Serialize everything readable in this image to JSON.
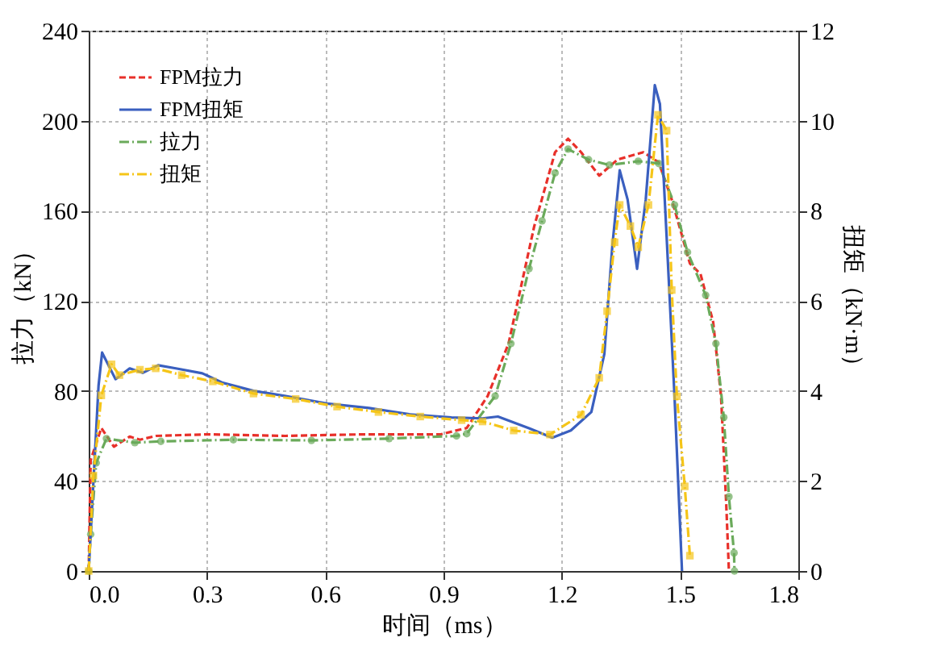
{
  "chart_data": {
    "type": "line",
    "xlabel": "时间（ms）",
    "ylabel": "拉力（kN）",
    "y2label": "扭矩（kN·m）",
    "xlim": [
      0,
      1.8
    ],
    "xticks": [
      {
        "value": 0,
        "label": "0.0"
      },
      {
        "value": 0.3,
        "label": "0.3"
      },
      {
        "value": 0.6,
        "label": "0.6"
      },
      {
        "value": 0.9,
        "label": "0.9"
      },
      {
        "value": 1.2,
        "label": "1.2"
      },
      {
        "value": 1.5,
        "label": "1.5"
      },
      {
        "value": 1.8,
        "label": "1.8"
      }
    ],
    "ylim": [
      0,
      240
    ],
    "yticks": [
      0,
      40,
      80,
      120,
      160,
      200,
      240
    ],
    "y2lim": [
      0,
      12
    ],
    "y2ticks": [
      0,
      2,
      4,
      6,
      8,
      10,
      12
    ],
    "grid": true,
    "legend": "top left",
    "series": [
      {
        "name": "FPM拉力",
        "color": "#e8302a",
        "line_style": "dashed",
        "marker": "none",
        "x": [
          0,
          0.005,
          0.032,
          0.064,
          0.104,
          0.13,
          0.17,
          0.3,
          0.499,
          0.696,
          0.893,
          0.946,
          0.959,
          1.012,
          1.065,
          1.13,
          1.183,
          1.216,
          1.249,
          1.295,
          1.341,
          1.407,
          1.446,
          1.479,
          1.525,
          1.552,
          1.584,
          1.604,
          1.617,
          1.624
        ],
        "values": [
          0,
          49.3,
          63.5,
          55.2,
          59.7,
          58.3,
          60,
          60.7,
          60,
          60.7,
          60.7,
          63,
          63.5,
          77.7,
          101,
          153,
          186,
          192,
          186,
          175.6,
          182.7,
          186,
          181.5,
          165,
          136.6,
          131.9,
          110.6,
          77.7,
          30.4,
          0
        ]
      },
      {
        "name": "FPM扭矩",
        "color": "#3a5fbf",
        "line_style": "solid",
        "marker": "none",
        "axis": "y2",
        "x": [
          0,
          0.025,
          0.034,
          0.068,
          0.104,
          0.137,
          0.176,
          0.221,
          0.288,
          0.34,
          0.418,
          0.497,
          0.604,
          0.711,
          0.813,
          0.92,
          0.999,
          1.038,
          1.117,
          1.176,
          1.223,
          1.275,
          1.308,
          1.328,
          1.347,
          1.367,
          1.391,
          1.413,
          1.436,
          1.449,
          1.466,
          1.486,
          1.505
        ],
        "values": [
          0,
          4.12,
          4.85,
          4.26,
          4.5,
          4.4,
          4.57,
          4.5,
          4.39,
          4.18,
          4.0,
          3.89,
          3.72,
          3.62,
          3.48,
          3.41,
          3.39,
          3.43,
          3.17,
          2.96,
          3.12,
          3.53,
          4.82,
          7.19,
          8.9,
          8.25,
          6.71,
          8.25,
          10.79,
          10.37,
          7.42,
          3.88,
          0
        ]
      },
      {
        "name": "拉力",
        "color": "#6aaa5a",
        "line_style": "dashdot",
        "marker": "circle",
        "x": [
          0,
          0.005,
          0.019,
          0.045,
          0.117,
          0.183,
          0.367,
          0.565,
          0.762,
          0.933,
          0.959,
          1.031,
          1.071,
          1.117,
          1.15,
          1.183,
          1.216,
          1.268,
          1.321,
          1.394,
          1.446,
          1.486,
          1.519,
          1.565,
          1.591,
          1.611,
          1.624,
          1.637,
          1.638
        ],
        "values": [
          0,
          16.3,
          48,
          58.8,
          57,
          57.6,
          58.3,
          58,
          58.8,
          60,
          61,
          77.7,
          101,
          134.3,
          155.5,
          176.8,
          187.4,
          182.7,
          180.3,
          182,
          181,
          162.6,
          141.6,
          122.5,
          101,
          68.2,
          33,
          8,
          0
        ]
      },
      {
        "name": "扭矩",
        "color": "#f5c518",
        "line_style": "dashdot",
        "marker": "square",
        "axis": "y2",
        "x": [
          0,
          0.012,
          0.032,
          0.058,
          0.078,
          0.13,
          0.17,
          0.236,
          0.315,
          0.418,
          0.525,
          0.63,
          0.735,
          0.841,
          0.946,
          0.999,
          1.078,
          1.17,
          1.249,
          1.295,
          1.315,
          1.334,
          1.347,
          1.374,
          1.394,
          1.42,
          1.444,
          1.466,
          1.479,
          1.492,
          1.512,
          1.525
        ],
        "values": [
          0,
          2.12,
          3.9,
          4.59,
          4.35,
          4.47,
          4.5,
          4.35,
          4.21,
          3.94,
          3.82,
          3.65,
          3.53,
          3.43,
          3.35,
          3.32,
          3.12,
          3.03,
          3.47,
          4.29,
          5.77,
          7.3,
          8.13,
          7.66,
          7.19,
          8.13,
          10.13,
          9.78,
          6.24,
          3.88,
          1.88,
          0.34
        ]
      }
    ]
  }
}
